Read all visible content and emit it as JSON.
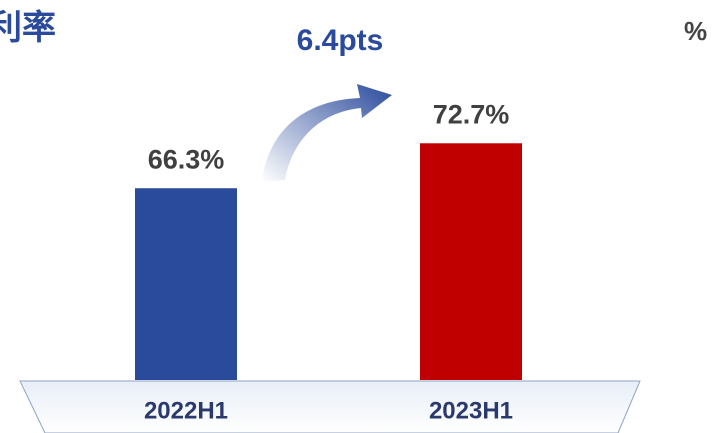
{
  "chart_data": {
    "type": "bar",
    "title": "利率",
    "unit": "%",
    "annotation": "6.4pts",
    "categories": [
      "2022H1",
      "2023H1"
    ],
    "values": [
      66.3,
      72.7
    ],
    "value_labels": [
      "66.3%",
      "72.7%"
    ],
    "colors": [
      "#2a4a9c",
      "#c00000"
    ],
    "ylim": [
      39,
      80
    ]
  }
}
